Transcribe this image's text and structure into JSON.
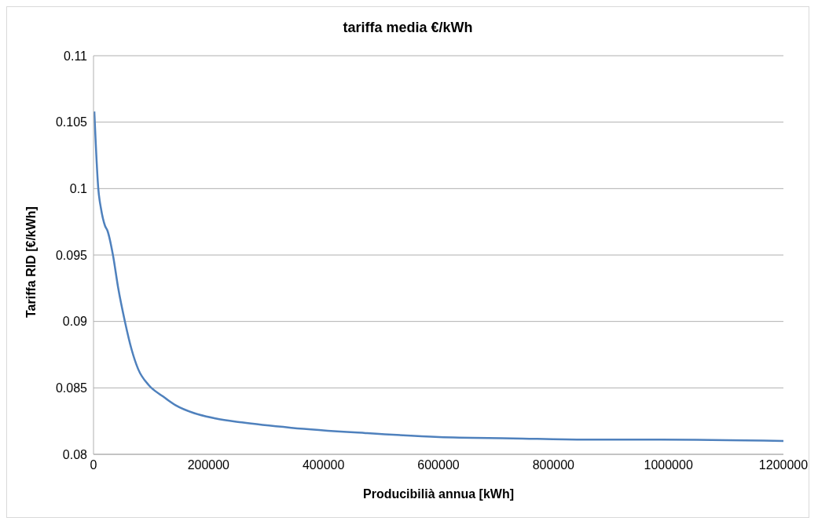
{
  "chart_data": {
    "type": "line",
    "title": "tariffa media  €/kWh",
    "xlabel": "Producibilià annua [kWh]",
    "ylabel": "Tariffa RID [€/kWh]",
    "x": [
      1400,
      8300,
      13000,
      20000,
      24500,
      33800,
      43000,
      54600,
      66200,
      77800,
      96300,
      119400,
      142600,
      175000,
      212000,
      258000,
      344000,
      473000,
      601000,
      729000,
      857000,
      986000,
      1200000
    ],
    "series": [
      {
        "color": "#4f81bd",
        "values": [
          0.1058,
          0.1,
          0.0985,
          0.0972,
          0.0968,
          0.095,
          0.0925,
          0.09,
          0.0879,
          0.0864,
          0.0852,
          0.0844,
          0.0837,
          0.0831,
          0.0827,
          0.0824,
          0.082,
          0.0816,
          0.0813,
          0.0812,
          0.0811,
          0.0811,
          0.081
        ]
      }
    ],
    "xlim": [
      0,
      1200000
    ],
    "xticks": [
      0,
      200000,
      400000,
      600000,
      800000,
      1000000,
      1200000
    ],
    "ylim": [
      0.08,
      0.11
    ],
    "yticks": [
      0.08,
      0.085,
      0.09,
      0.095,
      0.1,
      0.105,
      0.11
    ],
    "grid": "y",
    "legend": false,
    "marker": "none",
    "line_style": "solid"
  }
}
